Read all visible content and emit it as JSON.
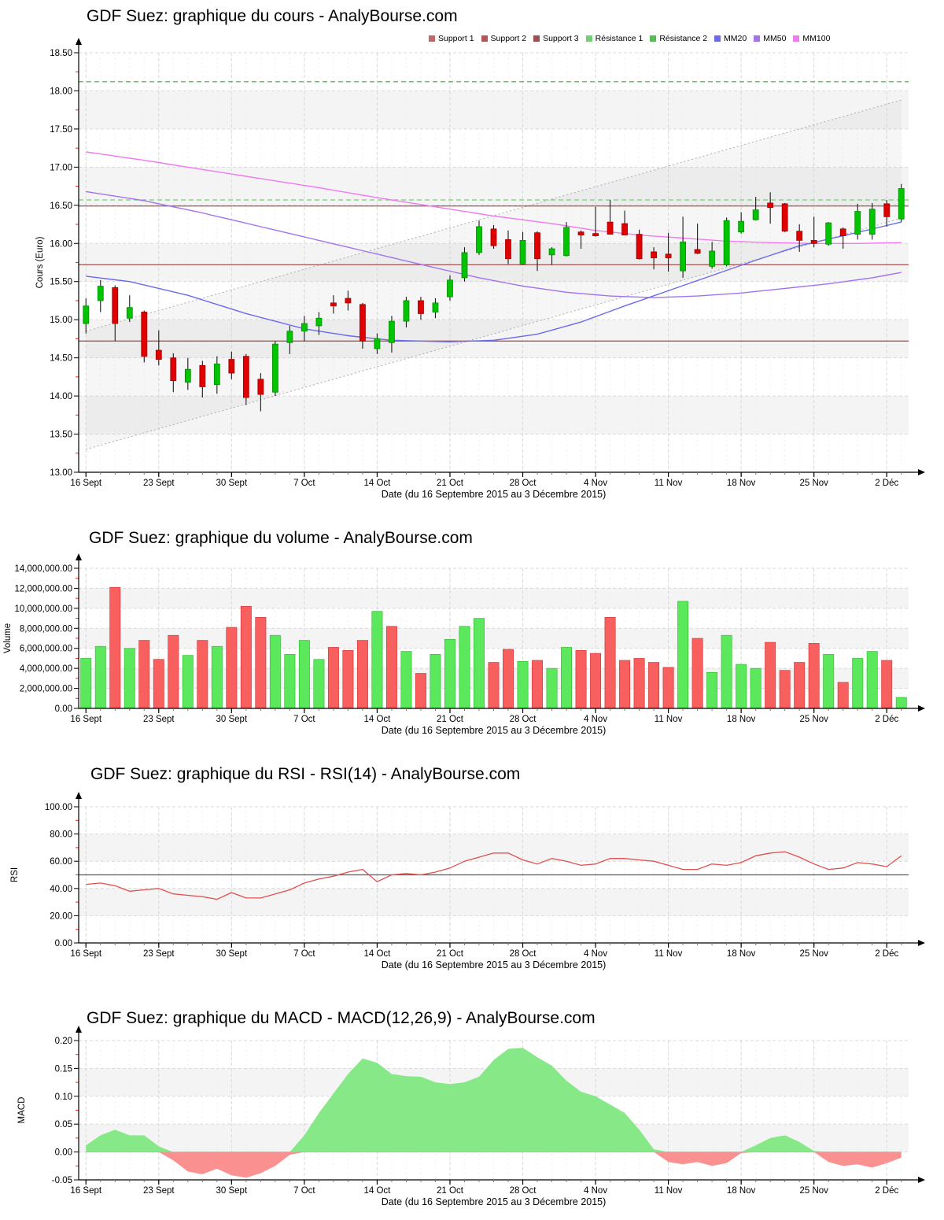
{
  "axis_common": {
    "x_tick_labels": [
      "16 Sept",
      "23 Sept",
      "30 Sept",
      "7 Oct",
      "14 Oct",
      "21 Oct",
      "28 Oct",
      "4 Nov",
      "11 Nov",
      "18 Nov",
      "25 Nov",
      "2 Déc"
    ],
    "x_tick_day_index": [
      0,
      5,
      10,
      15,
      20,
      25,
      30,
      35,
      40,
      45,
      50,
      55
    ],
    "n_days": 57,
    "x_axis_title": "Date (du 16 Septembre 2015 au 3 Décembre 2015)"
  },
  "colors": {
    "candle_up": "#00c400",
    "candle_up_edge": "#008f00",
    "candle_down": "#e00000",
    "candle_down_edge": "#a00000",
    "wick": "#1a1a1a",
    "vol_up": "#5ce85c",
    "vol_up_edge": "#2fb62f",
    "vol_down": "#f85f5f",
    "vol_down_edge": "#d03030",
    "rsi_line": "#e05050",
    "rsi_midline": "#5a5a5a",
    "macd_pos": "#86e886",
    "macd_neg": "#fb9090",
    "mm20": "#6a6aef",
    "mm50": "#a273ef",
    "mm100": "#f07af0",
    "support": "#a85555",
    "resistance1": "#72cf72",
    "resistance2": "#57bb57",
    "grid_week": "#d9d9d9",
    "grid_day": "#efefef",
    "stripe": "#f4f4f4",
    "minor_tick": "#e03030",
    "axis": "#000000",
    "channel_line": "#ababab",
    "channel_fill": "rgba(185,185,185,0.13)"
  },
  "legend": {
    "items": [
      {
        "label": "Support 1",
        "color": "#c06868"
      },
      {
        "label": "Support 2",
        "color": "#b05858"
      },
      {
        "label": "Support 3",
        "color": "#a04e4e"
      },
      {
        "label": "Résistance 1",
        "color": "#72cf72"
      },
      {
        "label": "Résistance 2",
        "color": "#57bb57"
      },
      {
        "label": "MM20",
        "color": "#6a6aef"
      },
      {
        "label": "MM50",
        "color": "#a273ef"
      },
      {
        "label": "MM100",
        "color": "#f07af0"
      }
    ]
  },
  "chart_data": [
    {
      "type": "candlestick",
      "title": "GDF Suez: graphique du cours - AnalyBourse.com",
      "ylabel": "Cours (Euro)",
      "ylim": [
        13.0,
        18.5
      ],
      "ytick_step": 0.5,
      "grid": true,
      "candles_ohlc": [
        [
          14.95,
          15.28,
          14.82,
          15.18
        ],
        [
          15.25,
          15.52,
          15.1,
          15.44
        ],
        [
          15.42,
          15.45,
          14.72,
          14.95
        ],
        [
          15.02,
          15.32,
          14.97,
          15.16
        ],
        [
          15.1,
          15.12,
          14.44,
          14.52
        ],
        [
          14.6,
          14.86,
          14.4,
          14.48
        ],
        [
          14.5,
          14.56,
          14.05,
          14.2
        ],
        [
          14.18,
          14.5,
          14.08,
          14.35
        ],
        [
          14.4,
          14.46,
          13.98,
          14.12
        ],
        [
          14.15,
          14.52,
          14.03,
          14.42
        ],
        [
          14.48,
          14.58,
          14.22,
          14.3
        ],
        [
          14.52,
          14.55,
          13.88,
          13.98
        ],
        [
          14.22,
          14.3,
          13.8,
          14.02
        ],
        [
          14.05,
          14.72,
          14.0,
          14.68
        ],
        [
          14.7,
          14.92,
          14.55,
          14.85
        ],
        [
          14.85,
          15.05,
          14.72,
          14.95
        ],
        [
          14.92,
          15.1,
          14.8,
          15.02
        ],
        [
          15.22,
          15.32,
          15.08,
          15.18
        ],
        [
          15.28,
          15.38,
          15.12,
          15.22
        ],
        [
          15.2,
          15.22,
          14.62,
          14.72
        ],
        [
          14.62,
          14.82,
          14.55,
          14.75
        ],
        [
          14.7,
          15.05,
          14.57,
          14.98
        ],
        [
          14.98,
          15.3,
          14.9,
          15.25
        ],
        [
          15.25,
          15.3,
          15.0,
          15.08
        ],
        [
          15.1,
          15.28,
          15.02,
          15.22
        ],
        [
          15.3,
          15.58,
          15.25,
          15.52
        ],
        [
          15.55,
          15.95,
          15.5,
          15.88
        ],
        [
          15.88,
          16.3,
          15.85,
          16.22
        ],
        [
          16.19,
          16.24,
          15.93,
          15.97
        ],
        [
          16.05,
          16.17,
          15.73,
          15.8
        ],
        [
          15.73,
          16.15,
          15.72,
          16.04
        ],
        [
          16.14,
          16.16,
          15.64,
          15.8
        ],
        [
          15.85,
          15.95,
          15.72,
          15.93
        ],
        [
          15.84,
          16.28,
          15.83,
          16.21
        ],
        [
          16.15,
          16.17,
          15.93,
          16.11
        ],
        [
          16.13,
          16.48,
          16.09,
          16.1
        ],
        [
          16.28,
          16.57,
          16.12,
          16.12
        ],
        [
          16.26,
          16.43,
          16.11,
          16.11
        ],
        [
          16.12,
          16.18,
          15.79,
          15.8
        ],
        [
          15.89,
          15.95,
          15.66,
          15.81
        ],
        [
          15.86,
          16.14,
          15.63,
          15.81
        ],
        [
          15.64,
          16.35,
          15.55,
          16.02
        ],
        [
          15.92,
          16.26,
          15.86,
          15.87
        ],
        [
          15.7,
          16.02,
          15.67,
          15.9
        ],
        [
          15.72,
          16.34,
          15.7,
          16.3
        ],
        [
          16.15,
          16.41,
          16.13,
          16.29
        ],
        [
          16.31,
          16.61,
          16.3,
          16.44
        ],
        [
          16.53,
          16.67,
          16.26,
          16.47
        ],
        [
          16.52,
          16.53,
          16.15,
          16.16
        ],
        [
          16.16,
          16.25,
          15.89,
          16.04
        ],
        [
          16.04,
          16.35,
          15.95,
          16.0
        ],
        [
          15.99,
          16.28,
          15.97,
          16.27
        ],
        [
          16.19,
          16.21,
          15.93,
          16.1
        ],
        [
          16.12,
          16.52,
          16.05,
          16.42
        ],
        [
          16.12,
          16.53,
          16.05,
          16.45
        ],
        [
          16.52,
          16.57,
          16.22,
          16.35
        ],
        [
          16.32,
          16.78,
          16.28,
          16.72
        ]
      ],
      "levels": {
        "support1": 14.72,
        "support2": 15.72,
        "support3": 16.49,
        "resistance1": 16.57,
        "resistance2": 18.12
      },
      "mm20": [
        [
          0,
          15.57
        ],
        [
          3,
          15.5
        ],
        [
          7,
          15.32
        ],
        [
          11,
          15.08
        ],
        [
          15,
          14.88
        ],
        [
          18,
          14.79
        ],
        [
          21,
          14.73
        ],
        [
          25,
          14.71
        ],
        [
          28,
          14.73
        ],
        [
          31,
          14.81
        ],
        [
          34,
          14.97
        ],
        [
          37,
          15.18
        ],
        [
          40,
          15.38
        ],
        [
          43,
          15.58
        ],
        [
          46,
          15.78
        ],
        [
          49,
          15.97
        ],
        [
          52,
          16.1
        ],
        [
          56,
          16.28
        ]
      ],
      "mm50": [
        [
          0,
          16.68
        ],
        [
          4,
          16.56
        ],
        [
          8,
          16.4
        ],
        [
          12,
          16.22
        ],
        [
          16,
          16.04
        ],
        [
          20,
          15.86
        ],
        [
          24,
          15.68
        ],
        [
          27,
          15.55
        ],
        [
          30,
          15.44
        ],
        [
          33,
          15.36
        ],
        [
          36,
          15.31
        ],
        [
          39,
          15.29
        ],
        [
          42,
          15.31
        ],
        [
          45,
          15.35
        ],
        [
          48,
          15.41
        ],
        [
          51,
          15.47
        ],
        [
          54,
          15.55
        ],
        [
          56,
          15.62
        ]
      ],
      "mm100": [
        [
          0,
          17.2
        ],
        [
          4,
          17.09
        ],
        [
          8,
          16.97
        ],
        [
          12,
          16.85
        ],
        [
          16,
          16.73
        ],
        [
          20,
          16.6
        ],
        [
          24,
          16.48
        ],
        [
          28,
          16.36
        ],
        [
          32,
          16.26
        ],
        [
          35,
          16.17
        ],
        [
          38,
          16.11
        ],
        [
          41,
          16.07
        ],
        [
          44,
          16.03
        ],
        [
          47,
          16.01
        ],
        [
          50,
          16.0
        ],
        [
          53,
          16.0
        ],
        [
          56,
          16.01
        ]
      ],
      "channel": {
        "lower": [
          13.3,
          16.33
        ],
        "upper": [
          14.85,
          17.88
        ]
      }
    },
    {
      "type": "bar",
      "title": "GDF Suez: graphique du volume - AnalyBourse.com",
      "ylabel": "Volume",
      "ylim": [
        0,
        14000000
      ],
      "ytick_step": 2000000,
      "values": [
        5000000,
        6200000,
        12100000,
        6000000,
        6800000,
        4900000,
        7300000,
        5300000,
        6800000,
        6200000,
        8100000,
        10200000,
        9100000,
        7300000,
        5400000,
        6800000,
        4900000,
        6100000,
        5800000,
        6800000,
        9700000,
        8200000,
        5700000,
        3500000,
        5400000,
        6900000,
        8200000,
        9000000,
        4600000,
        5900000,
        4700000,
        4800000,
        4000000,
        6100000,
        5800000,
        5500000,
        9100000,
        4800000,
        5000000,
        4600000,
        4100000,
        10700000,
        7000000,
        3600000,
        7300000,
        4400000,
        4000000,
        6600000,
        3800000,
        4600000,
        6500000,
        5400000,
        2600000,
        5000000,
        5700000,
        4800000,
        1100000
      ],
      "up": [
        1,
        1,
        0,
        1,
        0,
        0,
        0,
        1,
        0,
        1,
        0,
        0,
        0,
        1,
        1,
        1,
        1,
        0,
        0,
        0,
        1,
        0,
        1,
        0,
        1,
        1,
        1,
        1,
        0,
        0,
        1,
        0,
        1,
        1,
        0,
        0,
        0,
        0,
        0,
        0,
        0,
        1,
        0,
        1,
        1,
        1,
        1,
        0,
        0,
        0,
        0,
        1,
        0,
        1,
        1,
        0,
        1
      ]
    },
    {
      "type": "line",
      "title": "GDF Suez: graphique du RSI - RSI(14) - AnalyBourse.com",
      "ylabel": "RSI",
      "ylim": [
        0,
        100
      ],
      "ytick_step": 20,
      "midline": 50,
      "values": [
        43,
        44,
        42,
        38,
        39,
        40,
        36,
        35,
        34,
        32,
        37,
        33,
        33,
        36,
        39,
        44,
        47,
        49,
        52,
        54,
        45,
        50,
        51,
        50,
        52,
        55,
        60,
        63,
        66,
        66,
        61,
        58,
        62,
        60,
        57,
        58,
        62,
        62,
        61,
        60,
        57,
        54,
        54,
        58,
        57,
        59,
        64,
        66,
        67,
        63,
        58,
        54,
        55,
        59,
        58,
        56,
        64
      ]
    },
    {
      "type": "area",
      "title": "GDF Suez: graphique du MACD - MACD(12,26,9) - AnalyBourse.com",
      "ylabel": "MACD",
      "ylim": [
        -0.05,
        0.2
      ],
      "ytick_step": 0.05,
      "values": [
        0.012,
        0.03,
        0.04,
        0.03,
        0.03,
        0.01,
        -0.015,
        -0.035,
        -0.04,
        -0.03,
        -0.042,
        -0.046,
        -0.038,
        -0.025,
        -0.005,
        0.03,
        0.07,
        0.105,
        0.14,
        0.168,
        0.16,
        0.14,
        0.136,
        0.135,
        0.125,
        0.122,
        0.125,
        0.135,
        0.165,
        0.185,
        0.187,
        0.17,
        0.155,
        0.128,
        0.108,
        0.1,
        0.085,
        0.07,
        0.04,
        0.005,
        -0.018,
        -0.022,
        -0.018,
        -0.025,
        -0.02,
        -0.002,
        0.012,
        0.025,
        0.03,
        0.018,
        0.002,
        -0.018,
        -0.025,
        -0.022,
        -0.028,
        -0.02,
        -0.01
      ]
    }
  ]
}
